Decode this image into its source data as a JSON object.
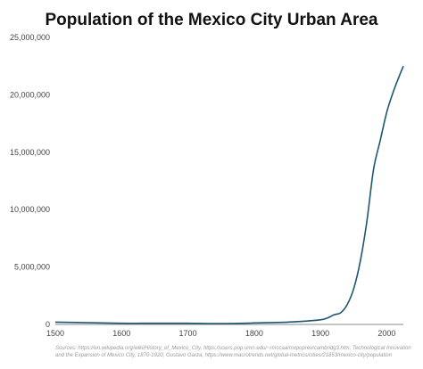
{
  "chart_data": {
    "type": "line",
    "title": "Population of the Mexico City Urban Area",
    "xlabel": "",
    "ylabel": "",
    "xlim": [
      1500,
      2025
    ],
    "ylim": [
      0,
      25000000
    ],
    "x_ticks": [
      1500,
      1600,
      1700,
      1800,
      1900,
      2000
    ],
    "x_tick_labels": [
      "1500",
      "1600",
      "1700",
      "1800",
      "1900",
      "2000"
    ],
    "y_ticks": [
      0,
      5000000,
      10000000,
      15000000,
      20000000,
      25000000
    ],
    "y_tick_labels": [
      "0",
      "5,000,000",
      "10,000,000",
      "15,000,000",
      "20,000,000",
      "25,000,000"
    ],
    "grid": false,
    "line_color": "#1f5670",
    "series": [
      {
        "x": [
          1500,
          1550,
          1600,
          1650,
          1700,
          1750,
          1790,
          1800,
          1850,
          1880,
          1900,
          1910,
          1921,
          1930,
          1940,
          1950,
          1960,
          1970,
          1980,
          1990,
          2000,
          2010,
          2020,
          2025
        ],
        "y": [
          200000,
          150000,
          100000,
          100000,
          100000,
          70000,
          110000,
          130000,
          200000,
          300000,
          400000,
          550000,
          850000,
          1000000,
          1700000,
          3100000,
          5500000,
          9000000,
          13500000,
          16000000,
          18500000,
          20300000,
          21800000,
          22500000
        ]
      }
    ]
  },
  "sources": "Sources: https://en.wikipedia.org/wiki/History_of_Mexico_City, https://users.pop.umn.edu/~rmccaa/mxpoprev/cambridg3.htm, Technological Innovation and the Expansion of Mexico City, 1870-1920, Gustavo Garza, https://www.macrotrends.net/global-metrics/cities/21853/mexico-city/population"
}
